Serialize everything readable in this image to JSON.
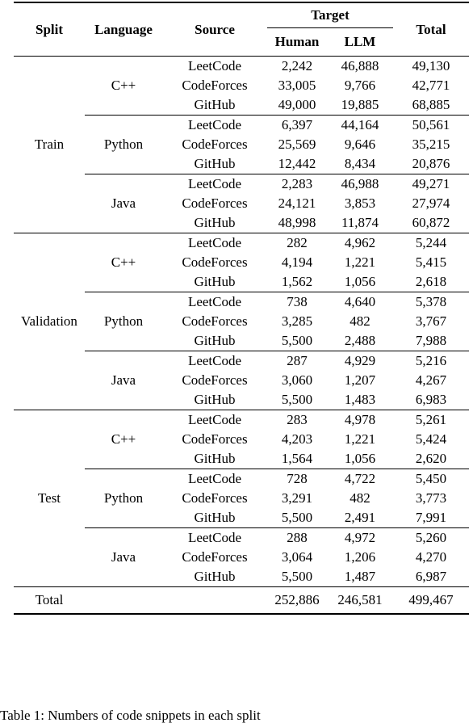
{
  "table": {
    "headers": {
      "split": "Split",
      "language": "Language",
      "source": "Source",
      "target": "Target",
      "human": "Human",
      "llm": "LLM",
      "total": "Total"
    },
    "splits": [
      {
        "name": "Train",
        "languages": [
          {
            "name": "C++",
            "rows": [
              {
                "source": "LeetCode",
                "human": "2,242",
                "llm": "46,888",
                "total": "49,130"
              },
              {
                "source": "CodeForces",
                "human": "33,005",
                "llm": "9,766",
                "total": "42,771"
              },
              {
                "source": "GitHub",
                "human": "49,000",
                "llm": "19,885",
                "total": "68,885"
              }
            ]
          },
          {
            "name": "Python",
            "rows": [
              {
                "source": "LeetCode",
                "human": "6,397",
                "llm": "44,164",
                "total": "50,561"
              },
              {
                "source": "CodeForces",
                "human": "25,569",
                "llm": "9,646",
                "total": "35,215"
              },
              {
                "source": "GitHub",
                "human": "12,442",
                "llm": "8,434",
                "total": "20,876"
              }
            ]
          },
          {
            "name": "Java",
            "rows": [
              {
                "source": "LeetCode",
                "human": "2,283",
                "llm": "46,988",
                "total": "49,271"
              },
              {
                "source": "CodeForces",
                "human": "24,121",
                "llm": "3,853",
                "total": "27,974"
              },
              {
                "source": "GitHub",
                "human": "48,998",
                "llm": "11,874",
                "total": "60,872"
              }
            ]
          }
        ]
      },
      {
        "name": "Validation",
        "languages": [
          {
            "name": "C++",
            "rows": [
              {
                "source": "LeetCode",
                "human": "282",
                "llm": "4,962",
                "total": "5,244"
              },
              {
                "source": "CodeForces",
                "human": "4,194",
                "llm": "1,221",
                "total": "5,415"
              },
              {
                "source": "GitHub",
                "human": "1,562",
                "llm": "1,056",
                "total": "2,618"
              }
            ]
          },
          {
            "name": "Python",
            "rows": [
              {
                "source": "LeetCode",
                "human": "738",
                "llm": "4,640",
                "total": "5,378"
              },
              {
                "source": "CodeForces",
                "human": "3,285",
                "llm": "482",
                "total": "3,767"
              },
              {
                "source": "GitHub",
                "human": "5,500",
                "llm": "2,488",
                "total": "7,988"
              }
            ]
          },
          {
            "name": "Java",
            "rows": [
              {
                "source": "LeetCode",
                "human": "287",
                "llm": "4,929",
                "total": "5,216"
              },
              {
                "source": "CodeForces",
                "human": "3,060",
                "llm": "1,207",
                "total": "4,267"
              },
              {
                "source": "GitHub",
                "human": "5,500",
                "llm": "1,483",
                "total": "6,983"
              }
            ]
          }
        ]
      },
      {
        "name": "Test",
        "languages": [
          {
            "name": "C++",
            "rows": [
              {
                "source": "LeetCode",
                "human": "283",
                "llm": "4,978",
                "total": "5,261"
              },
              {
                "source": "CodeForces",
                "human": "4,203",
                "llm": "1,221",
                "total": "5,424"
              },
              {
                "source": "GitHub",
                "human": "1,564",
                "llm": "1,056",
                "total": "2,620"
              }
            ]
          },
          {
            "name": "Python",
            "rows": [
              {
                "source": "LeetCode",
                "human": "728",
                "llm": "4,722",
                "total": "5,450"
              },
              {
                "source": "CodeForces",
                "human": "3,291",
                "llm": "482",
                "total": "3,773"
              },
              {
                "source": "GitHub",
                "human": "5,500",
                "llm": "2,491",
                "total": "7,991"
              }
            ]
          },
          {
            "name": "Java",
            "rows": [
              {
                "source": "LeetCode",
                "human": "288",
                "llm": "4,972",
                "total": "5,260"
              },
              {
                "source": "CodeForces",
                "human": "3,064",
                "llm": "1,206",
                "total": "4,270"
              },
              {
                "source": "GitHub",
                "human": "5,500",
                "llm": "1,487",
                "total": "6,987"
              }
            ]
          }
        ]
      }
    ],
    "grand_total": {
      "label": "Total",
      "human": "252,886",
      "llm": "246,581",
      "total": "499,467"
    }
  },
  "caption": "Table 1: Numbers of code snippets in each split"
}
